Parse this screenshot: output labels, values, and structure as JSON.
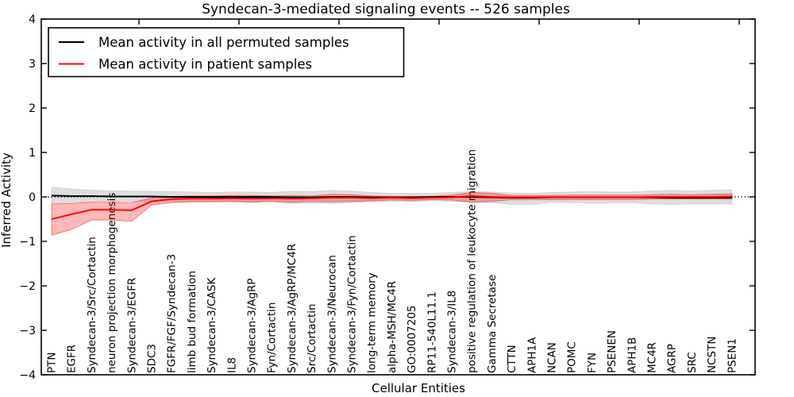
{
  "chart_data": {
    "type": "line",
    "title": "Syndecan-3-mediated signaling events -- 526 samples",
    "xlabel": "Cellular Entities",
    "ylabel": "Inferred Activity",
    "ylim": [
      -4,
      4
    ],
    "yticks": [
      4,
      3,
      2,
      1,
      0,
      -1,
      -2,
      -3,
      -4
    ],
    "grid": false,
    "legend_position": "upper left",
    "zero_line": {
      "value": 0,
      "style": "dotted",
      "color": "#000000"
    },
    "categories": [
      "PTN",
      "EGFR",
      "Syndecan-3/Src/Cortactin",
      "neuron projection morphogenesis",
      "Syndecan-3/EGFR",
      "SDC3",
      "FGFR/FGF/Syndecan-3",
      "limb bud formation",
      "Syndecan-3/CASK",
      "IL8",
      "Syndecan-3/AgRP",
      "Fyn/Cortactin",
      "Syndecan-3/AgRP/MC4R",
      "Src/Cortactin",
      "Syndecan-3/Neurocan",
      "Syndecan-3/Fyn/Cortactin",
      "long-term memory",
      "alpha-MSH/MC4R",
      "GO:0007205",
      "RP11-540L11.1",
      "Syndecan-3/IL8",
      "positive regulation of leukocyte migration",
      "Gamma Secretase",
      "CTTN",
      "APH1A",
      "NCAN",
      "POMC",
      "FYN",
      "PSENEN",
      "APH1B",
      "MC4R",
      "AGRP",
      "SRC",
      "NCSTN",
      "PSEN1"
    ],
    "series": [
      {
        "name": "Mean activity in all permuted samples",
        "color": "#000000",
        "band_fill": "rgba(0,0,0,0.13)",
        "band_edge": "rgba(0,0,0,0.10)",
        "values": [
          0.03,
          0.02,
          0.02,
          0.01,
          0.01,
          0.01,
          0.0,
          0.0,
          0.0,
          0.0,
          0.0,
          0.0,
          -0.01,
          -0.01,
          0.0,
          0.0,
          -0.01,
          -0.01,
          -0.01,
          0.0,
          0.0,
          0.0,
          -0.01,
          -0.02,
          -0.02,
          -0.01,
          -0.01,
          -0.01,
          -0.01,
          -0.01,
          -0.01,
          -0.02,
          -0.02,
          -0.02,
          -0.02
        ],
        "band_upper": [
          0.22,
          0.18,
          0.15,
          0.14,
          0.13,
          0.13,
          0.12,
          0.11,
          0.1,
          0.11,
          0.11,
          0.1,
          0.13,
          0.12,
          0.15,
          0.13,
          0.1,
          0.08,
          0.08,
          0.08,
          0.1,
          0.12,
          0.11,
          0.09,
          0.08,
          0.1,
          0.11,
          0.12,
          0.11,
          0.11,
          0.14,
          0.15,
          0.14,
          0.15,
          0.16
        ],
        "band_lower": [
          -0.15,
          -0.13,
          -0.11,
          -0.1,
          -0.1,
          -0.11,
          -0.1,
          -0.1,
          -0.1,
          -0.11,
          -0.11,
          -0.1,
          -0.15,
          -0.14,
          -0.15,
          -0.13,
          -0.1,
          -0.1,
          -0.11,
          -0.08,
          -0.1,
          -0.12,
          -0.13,
          -0.17,
          -0.17,
          -0.12,
          -0.13,
          -0.14,
          -0.13,
          -0.13,
          -0.16,
          -0.17,
          -0.16,
          -0.16,
          -0.16
        ]
      },
      {
        "name": "Mean activity in patient samples",
        "color": "#ff0000",
        "band_fill": "rgba(255,0,0,0.28)",
        "band_edge": "rgba(255,0,0,0.45)",
        "values": [
          -0.5,
          -0.39,
          -0.29,
          -0.29,
          -0.3,
          -0.1,
          -0.05,
          -0.04,
          -0.04,
          -0.03,
          -0.04,
          -0.03,
          -0.04,
          -0.03,
          -0.02,
          -0.02,
          -0.03,
          -0.02,
          -0.03,
          -0.02,
          -0.01,
          0.02,
          0.0,
          -0.01,
          -0.01,
          -0.01,
          -0.01,
          -0.01,
          -0.01,
          -0.01,
          0.0,
          0.0,
          0.0,
          0.0,
          0.01
        ],
        "band_upper": [
          -0.16,
          -0.15,
          -0.12,
          -0.12,
          -0.13,
          -0.02,
          0.01,
          0.02,
          0.02,
          0.03,
          0.03,
          0.02,
          0.03,
          0.02,
          0.06,
          0.05,
          0.02,
          0.01,
          0.01,
          0.01,
          0.04,
          0.1,
          0.08,
          0.03,
          0.03,
          0.03,
          0.04,
          0.04,
          0.04,
          0.04,
          0.05,
          0.06,
          0.05,
          0.06,
          0.07
        ],
        "band_lower": [
          -0.86,
          -0.73,
          -0.52,
          -0.52,
          -0.55,
          -0.18,
          -0.13,
          -0.11,
          -0.11,
          -0.1,
          -0.12,
          -0.1,
          -0.12,
          -0.1,
          -0.11,
          -0.1,
          -0.09,
          -0.07,
          -0.08,
          -0.06,
          -0.07,
          -0.12,
          -0.1,
          -0.06,
          -0.06,
          -0.06,
          -0.06,
          -0.06,
          -0.06,
          -0.06,
          -0.05,
          -0.05,
          -0.05,
          -0.05,
          -0.05
        ]
      }
    ]
  }
}
